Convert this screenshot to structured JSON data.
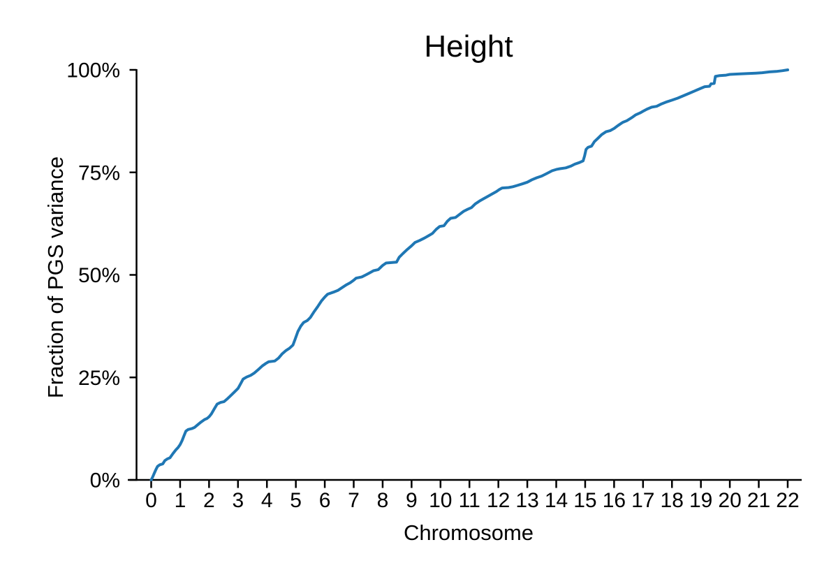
{
  "figure": {
    "background": "#ffffff"
  },
  "chart_data": {
    "type": "line",
    "title": "Height",
    "xlabel": "Chromosome",
    "ylabel": "Fraction of PGS variance",
    "x_tick_labels": [
      "0",
      "1",
      "2",
      "3",
      "4",
      "5",
      "6",
      "7",
      "8",
      "9",
      "10",
      "11",
      "12",
      "13",
      "14",
      "15",
      "16",
      "17",
      "18",
      "19",
      "20",
      "21",
      "22"
    ],
    "x_tick_values": [
      0,
      1,
      2,
      3,
      4,
      5,
      6,
      7,
      8,
      9,
      10,
      11,
      12,
      13,
      14,
      15,
      16,
      17,
      18,
      19,
      20,
      21,
      22
    ],
    "y_tick_labels": [
      "0%",
      "25%",
      "50%",
      "75%",
      "100%"
    ],
    "y_tick_values": [
      0,
      25,
      50,
      75,
      100
    ],
    "xlim": [
      -0.8,
      22.5
    ],
    "ylim": [
      0,
      100
    ],
    "grid": false,
    "legend_position": "none",
    "line_color": "#1f77b4",
    "axis_color": "#000000",
    "series": [
      {
        "name": "Height",
        "x_units": "chromosome",
        "y_units": "percent of PGS variance (cumulative)",
        "points": [
          [
            0,
            0
          ],
          [
            0.05,
            0.7
          ],
          [
            0.1,
            1.5
          ],
          [
            0.17,
            2.6
          ],
          [
            0.22,
            3.3
          ],
          [
            0.3,
            3.7
          ],
          [
            0.4,
            3.9
          ],
          [
            0.47,
            4.7
          ],
          [
            0.55,
            5.1
          ],
          [
            0.65,
            5.4
          ],
          [
            0.75,
            6.4
          ],
          [
            0.85,
            7.3
          ],
          [
            0.93,
            7.9
          ],
          [
            1.0,
            8.6
          ],
          [
            1.07,
            9.6
          ],
          [
            1.13,
            10.7
          ],
          [
            1.2,
            11.9
          ],
          [
            1.28,
            12.3
          ],
          [
            1.4,
            12.5
          ],
          [
            1.5,
            12.8
          ],
          [
            1.6,
            13.4
          ],
          [
            1.72,
            14.1
          ],
          [
            1.84,
            14.7
          ],
          [
            1.93,
            15.0
          ],
          [
            2.0,
            15.4
          ],
          [
            2.08,
            16.1
          ],
          [
            2.18,
            17.3
          ],
          [
            2.28,
            18.5
          ],
          [
            2.4,
            18.9
          ],
          [
            2.52,
            19.1
          ],
          [
            2.62,
            19.7
          ],
          [
            2.74,
            20.5
          ],
          [
            2.87,
            21.4
          ],
          [
            3.0,
            22.3
          ],
          [
            3.08,
            23.3
          ],
          [
            3.18,
            24.6
          ],
          [
            3.3,
            25.1
          ],
          [
            3.44,
            25.5
          ],
          [
            3.57,
            26.1
          ],
          [
            3.7,
            26.9
          ],
          [
            3.84,
            27.8
          ],
          [
            3.96,
            28.4
          ],
          [
            4.06,
            28.8
          ],
          [
            4.27,
            29.0
          ],
          [
            4.4,
            29.7
          ],
          [
            4.52,
            30.7
          ],
          [
            4.65,
            31.5
          ],
          [
            4.78,
            32.1
          ],
          [
            4.9,
            32.9
          ],
          [
            4.97,
            34.2
          ],
          [
            5.07,
            36.2
          ],
          [
            5.17,
            37.5
          ],
          [
            5.27,
            38.4
          ],
          [
            5.4,
            38.9
          ],
          [
            5.5,
            39.6
          ],
          [
            5.62,
            40.9
          ],
          [
            5.75,
            42.2
          ],
          [
            5.88,
            43.6
          ],
          [
            6.0,
            44.6
          ],
          [
            6.1,
            45.3
          ],
          [
            6.3,
            45.8
          ],
          [
            6.45,
            46.2
          ],
          [
            6.6,
            46.9
          ],
          [
            6.75,
            47.6
          ],
          [
            6.88,
            48.1
          ],
          [
            7.0,
            48.7
          ],
          [
            7.08,
            49.2
          ],
          [
            7.28,
            49.5
          ],
          [
            7.42,
            50.0
          ],
          [
            7.55,
            50.5
          ],
          [
            7.68,
            51.0
          ],
          [
            7.85,
            51.3
          ],
          [
            8.0,
            52.3
          ],
          [
            8.12,
            52.9
          ],
          [
            8.3,
            53.0
          ],
          [
            8.48,
            53.1
          ],
          [
            8.57,
            54.3
          ],
          [
            8.7,
            55.2
          ],
          [
            8.85,
            56.2
          ],
          [
            9.0,
            57.1
          ],
          [
            9.12,
            57.9
          ],
          [
            9.28,
            58.4
          ],
          [
            9.45,
            59.0
          ],
          [
            9.6,
            59.6
          ],
          [
            9.72,
            60.1
          ],
          [
            9.85,
            61.1
          ],
          [
            9.97,
            61.8
          ],
          [
            10.12,
            62.0
          ],
          [
            10.24,
            63.1
          ],
          [
            10.35,
            63.8
          ],
          [
            10.52,
            64.0
          ],
          [
            10.65,
            64.7
          ],
          [
            10.8,
            65.5
          ],
          [
            10.94,
            66.0
          ],
          [
            11.07,
            66.4
          ],
          [
            11.2,
            67.3
          ],
          [
            11.35,
            68.0
          ],
          [
            11.5,
            68.6
          ],
          [
            11.65,
            69.2
          ],
          [
            11.8,
            69.8
          ],
          [
            11.93,
            70.3
          ],
          [
            12.03,
            70.8
          ],
          [
            12.13,
            71.2
          ],
          [
            12.35,
            71.3
          ],
          [
            12.5,
            71.5
          ],
          [
            12.65,
            71.8
          ],
          [
            12.83,
            72.2
          ],
          [
            13.0,
            72.6
          ],
          [
            13.16,
            73.2
          ],
          [
            13.33,
            73.7
          ],
          [
            13.5,
            74.1
          ],
          [
            13.67,
            74.7
          ],
          [
            13.86,
            75.4
          ],
          [
            14.0,
            75.7
          ],
          [
            14.13,
            75.9
          ],
          [
            14.33,
            76.1
          ],
          [
            14.5,
            76.5
          ],
          [
            14.64,
            77.0
          ],
          [
            14.8,
            77.4
          ],
          [
            14.93,
            77.8
          ],
          [
            14.98,
            79.0
          ],
          [
            15.03,
            80.6
          ],
          [
            15.1,
            81.1
          ],
          [
            15.22,
            81.4
          ],
          [
            15.32,
            82.5
          ],
          [
            15.44,
            83.3
          ],
          [
            15.57,
            84.2
          ],
          [
            15.72,
            84.9
          ],
          [
            15.87,
            85.2
          ],
          [
            16.0,
            85.7
          ],
          [
            16.13,
            86.4
          ],
          [
            16.3,
            87.2
          ],
          [
            16.44,
            87.6
          ],
          [
            16.6,
            88.3
          ],
          [
            16.74,
            89.0
          ],
          [
            16.9,
            89.5
          ],
          [
            17.0,
            89.9
          ],
          [
            17.13,
            90.4
          ],
          [
            17.3,
            90.9
          ],
          [
            17.47,
            91.1
          ],
          [
            17.64,
            91.7
          ],
          [
            17.82,
            92.2
          ],
          [
            18.0,
            92.6
          ],
          [
            18.2,
            93.1
          ],
          [
            18.4,
            93.7
          ],
          [
            18.6,
            94.3
          ],
          [
            18.8,
            94.9
          ],
          [
            19.0,
            95.5
          ],
          [
            19.13,
            95.9
          ],
          [
            19.3,
            96.0
          ],
          [
            19.35,
            96.6
          ],
          [
            19.46,
            96.7
          ],
          [
            19.5,
            98.4
          ],
          [
            19.65,
            98.6
          ],
          [
            19.87,
            98.7
          ],
          [
            20.0,
            98.9
          ],
          [
            20.3,
            99.0
          ],
          [
            20.62,
            99.1
          ],
          [
            20.9,
            99.2
          ],
          [
            21.12,
            99.3
          ],
          [
            21.37,
            99.5
          ],
          [
            21.6,
            99.6
          ],
          [
            21.82,
            99.8
          ],
          [
            22.0,
            100
          ]
        ]
      }
    ]
  }
}
